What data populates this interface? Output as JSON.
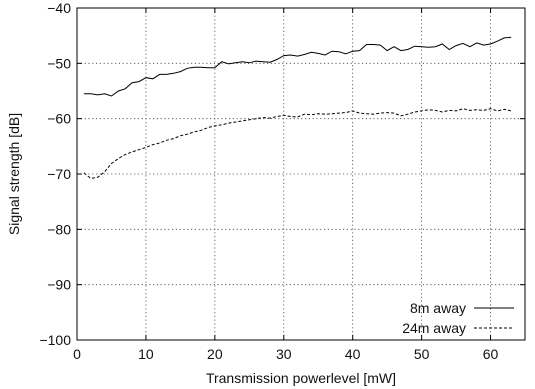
{
  "chart_data": {
    "type": "line",
    "title": "",
    "xlabel": "Transmission powerlevel [mW]",
    "ylabel": "Signal strength [dB]",
    "xlim": [
      0,
      65
    ],
    "ylim": [
      -100,
      -40
    ],
    "xticks": [
      0,
      10,
      20,
      30,
      40,
      50,
      60
    ],
    "yticks": [
      -100,
      -90,
      -80,
      -70,
      -60,
      -50,
      -40
    ],
    "xtick_labels": [
      "0",
      "10",
      "20",
      "30",
      "40",
      "50",
      "60"
    ],
    "ytick_labels": [
      "−100",
      "−90",
      "−80",
      "−70",
      "−60",
      "−50",
      "−40"
    ],
    "grid": true,
    "grid_style": "dotted",
    "legend_position": "bottom-right",
    "series": [
      {
        "name": "8m away",
        "line_style": "solid",
        "color": "#000000",
        "x": [
          1,
          2,
          3,
          4,
          5,
          6,
          7,
          8,
          9,
          10,
          11,
          12,
          13,
          14,
          15,
          16,
          17,
          18,
          19,
          20,
          21,
          22,
          23,
          24,
          25,
          26,
          27,
          28,
          29,
          30,
          31,
          32,
          33,
          34,
          35,
          36,
          37,
          38,
          39,
          40,
          41,
          42,
          43,
          44,
          45,
          46,
          47,
          48,
          49,
          50,
          51,
          52,
          53,
          54,
          55,
          56,
          57,
          58,
          59,
          60,
          61,
          62,
          63
        ],
        "y": [
          -55.5,
          -55.5,
          -55.7,
          -55.5,
          -55.9,
          -55.0,
          -54.6,
          -53.5,
          -53.3,
          -52.6,
          -52.8,
          -52.0,
          -52.0,
          -51.8,
          -51.5,
          -50.9,
          -50.7,
          -50.7,
          -50.8,
          -50.8,
          -49.7,
          -50.1,
          -49.9,
          -49.7,
          -49.9,
          -49.6,
          -49.7,
          -49.8,
          -49.3,
          -48.6,
          -48.5,
          -48.7,
          -48.4,
          -48.0,
          -48.2,
          -48.5,
          -47.8,
          -47.9,
          -48.3,
          -47.8,
          -47.7,
          -46.6,
          -46.6,
          -46.7,
          -47.7,
          -47.0,
          -47.7,
          -47.5,
          -46.9,
          -47.0,
          -47.1,
          -47.0,
          -46.5,
          -47.5,
          -46.8,
          -46.4,
          -47.0,
          -46.3,
          -46.7,
          -46.5,
          -46.0,
          -45.4,
          -45.3
        ]
      },
      {
        "name": "24m away",
        "line_style": "dashed",
        "color": "#000000",
        "x": [
          1,
          2,
          3,
          4,
          5,
          6,
          7,
          8,
          9,
          10,
          11,
          12,
          13,
          14,
          15,
          16,
          17,
          18,
          19,
          20,
          21,
          22,
          23,
          24,
          25,
          26,
          27,
          28,
          29,
          30,
          31,
          32,
          33,
          34,
          35,
          36,
          37,
          38,
          39,
          40,
          41,
          42,
          43,
          44,
          45,
          46,
          47,
          48,
          49,
          50,
          51,
          52,
          53,
          54,
          55,
          56,
          57,
          58,
          59,
          60,
          61,
          62,
          63
        ],
        "y": [
          -69.8,
          -70.8,
          -70.6,
          -69.6,
          -68.1,
          -67.2,
          -66.5,
          -66.0,
          -65.6,
          -65.2,
          -64.7,
          -64.4,
          -63.9,
          -63.6,
          -63.1,
          -62.8,
          -62.4,
          -62.1,
          -61.6,
          -61.3,
          -61.1,
          -60.8,
          -60.6,
          -60.4,
          -60.2,
          -60.0,
          -59.8,
          -59.9,
          -59.6,
          -59.4,
          -59.6,
          -59.7,
          -59.2,
          -59.3,
          -59.1,
          -59.2,
          -59.1,
          -59.0,
          -58.9,
          -58.6,
          -59.0,
          -59.1,
          -59.2,
          -59.0,
          -58.9,
          -59.0,
          -59.5,
          -59.2,
          -58.8,
          -58.6,
          -58.4,
          -58.5,
          -58.8,
          -58.5,
          -58.6,
          -58.2,
          -58.5,
          -58.4,
          -58.5,
          -58.2,
          -58.6,
          -58.3,
          -58.6
        ]
      }
    ]
  }
}
